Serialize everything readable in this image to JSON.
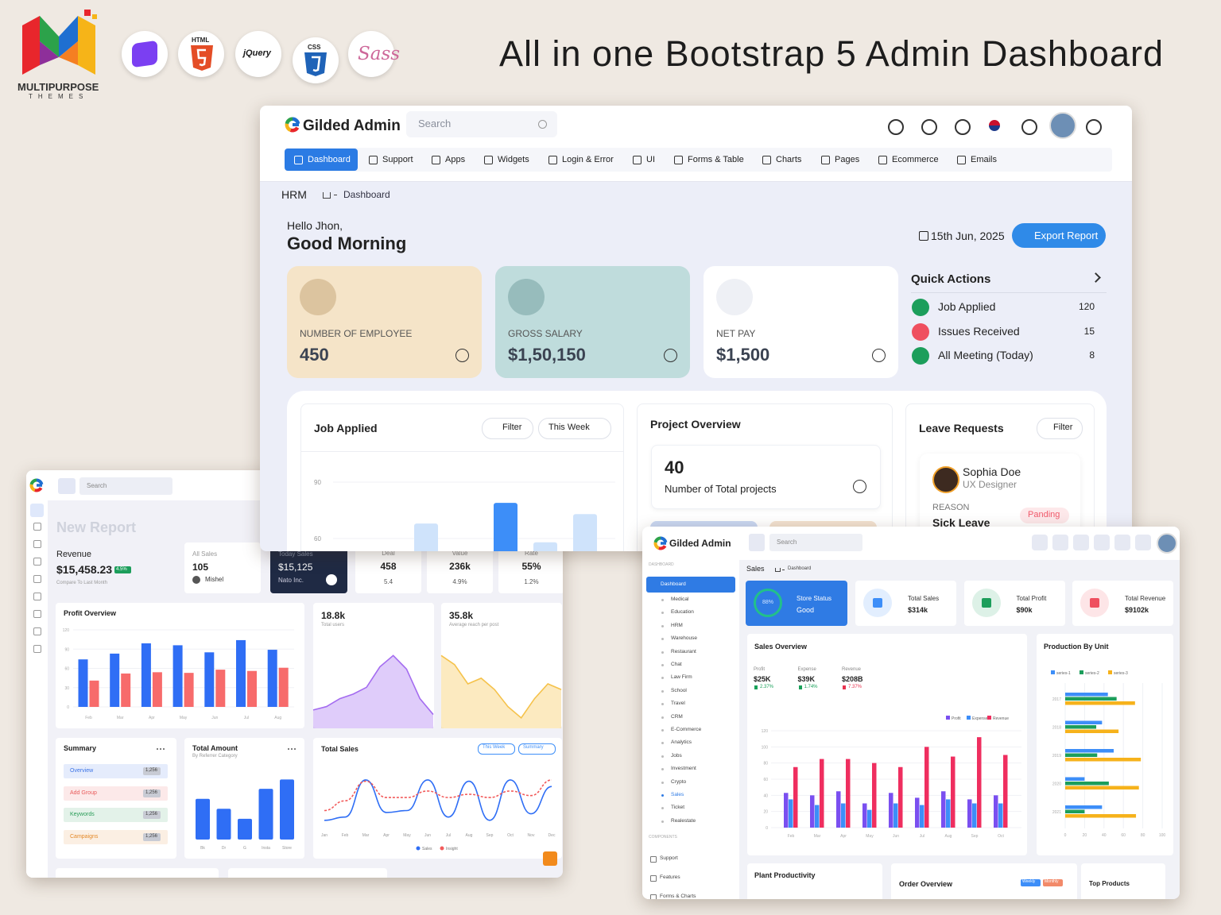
{
  "header": {
    "logo_text": "MULTIPURPOSE",
    "logo_sub": "THEMES",
    "badges": [
      "HTML",
      "jQuery",
      "CSS",
      "Sass"
    ],
    "title": "All in one Bootstrap 5 Admin Dashboard"
  },
  "main": {
    "brand": "Gilded Admin",
    "search": "Search",
    "nav": [
      "Dashboard",
      "Support",
      "Apps",
      "Widgets",
      "Login & Error",
      "UI",
      "Forms & Table",
      "Charts",
      "Pages",
      "Ecommerce",
      "Emails"
    ],
    "breadcrumb": [
      "HRM",
      "Dashboard"
    ],
    "greeting": "Hello Jhon,",
    "salutation": "Good Morning",
    "date": "15th Jun, 2025",
    "export": "Export Report",
    "stats": [
      {
        "label": "NUMBER OF EMPLOYEE",
        "value": "450"
      },
      {
        "label": "GROSS SALARY",
        "value": "$1,50,150"
      },
      {
        "label": "NET PAY",
        "value": "$1,500"
      }
    ],
    "quick_actions": {
      "title": "Quick Actions",
      "items": [
        {
          "label": "Job Applied",
          "count": 120
        },
        {
          "label": "Issues Received",
          "count": 15
        },
        {
          "label": "All Meeting (Today)",
          "count": 8
        }
      ]
    },
    "job_applied": {
      "title": "Job Applied",
      "filter": "Filter",
      "period": "This Week",
      "type": "bar",
      "ylim": [
        0,
        100
      ],
      "yticks": [
        60,
        90
      ],
      "values": [
        null,
        null,
        68,
        null,
        79,
        58,
        73
      ],
      "colors": [
        null,
        null,
        "#cfe3fb",
        null,
        "#3d8ef8",
        "#cfe3fb",
        "#cfe3fb"
      ]
    },
    "project_overview": {
      "title": "Project Overview",
      "count": 40,
      "caption": "Number of Total projects"
    },
    "leave_requests": {
      "title": "Leave Requests",
      "filter": "Filter",
      "name": "Sophia Doe",
      "role": "UX Designer",
      "reason_label": "REASON",
      "reason": "Sick Leave",
      "status": "Panding"
    }
  },
  "left": {
    "search": "Search",
    "heading": "New Report",
    "revenue": {
      "label": "Revenue",
      "value": "$15,458.23",
      "change": "4.5%",
      "note": "Compare To Last Month"
    },
    "all_sales": {
      "label": "All Sales",
      "value": 105,
      "person": "Mishel"
    },
    "today_sales": {
      "label": "Today Sales",
      "value": "$15,125",
      "company": "Nato Inc."
    },
    "kpis": [
      {
        "label": "Deal",
        "value": 458,
        "change": "5.4"
      },
      {
        "label": "Value",
        "value": "236k",
        "change": "4.9%"
      },
      {
        "label": "Rate",
        "value": "55%",
        "change": "1.2%"
      }
    ],
    "profit_overview": {
      "title": "Profit Overview",
      "type": "bar",
      "categories": [
        "Feb",
        "Mar",
        "Apr",
        "May",
        "Jun",
        "Jul",
        "Aug"
      ],
      "ylim": [
        0,
        120
      ],
      "yticks": [
        0,
        30,
        60,
        90,
        120
      ],
      "series": [
        {
          "color": "#2f6ef5",
          "values": [
            74,
            83,
            99,
            96,
            85,
            104,
            89
          ]
        },
        {
          "color": "#f76b6b",
          "values": [
            41,
            52,
            54,
            53,
            58,
            56,
            61
          ]
        }
      ]
    },
    "users": {
      "value": "18.8k",
      "label": "Total users",
      "color": "#a46cf0",
      "ylim": [
        0,
        70
      ],
      "values": [
        12,
        15,
        22,
        26,
        32,
        50,
        60,
        48,
        22,
        8
      ]
    },
    "reach": {
      "value": "35.8k",
      "label": "Average reach per post",
      "color": "#f5c24b",
      "ylim": [
        0,
        70
      ],
      "values": [
        60,
        52,
        35,
        40,
        30,
        15,
        5,
        22,
        35,
        30
      ]
    },
    "summary": {
      "title": "Summary",
      "items": [
        {
          "label": "Overview",
          "value": "1,256",
          "color": "#3b73e6"
        },
        {
          "label": "Add Group",
          "value": "1,256",
          "color": "#e85a5a"
        },
        {
          "label": "Keywords",
          "value": "1,256",
          "color": "#2a9d58"
        },
        {
          "label": "Campaigns",
          "value": "1,256",
          "color": "#e48a2a"
        }
      ]
    },
    "total_amount": {
      "title": "Total Amount",
      "subtitle": "By Referrer Category",
      "type": "bar",
      "categories": [
        "Bk",
        "Dr",
        "G",
        "Insta",
        "Store"
      ],
      "ylim": [
        0,
        100
      ],
      "values": [
        57,
        43,
        29,
        71,
        84
      ],
      "color": "#2f6ef5"
    },
    "total_sales": {
      "title": "Total Sales",
      "period": "This Week",
      "view": "Summary",
      "type": "line",
      "categories": [
        "Jan",
        "Feb",
        "Mar",
        "Apr",
        "May",
        "Jun",
        "Jul",
        "Aug",
        "Sep",
        "Oct",
        "Nov",
        "Dec"
      ],
      "ylim": [
        0,
        100
      ],
      "series": [
        {
          "name": "Sales",
          "color": "#2f6ef5",
          "values": [
            10,
            15,
            72,
            22,
            25,
            72,
            15,
            70,
            10,
            72,
            20,
            62
          ]
        },
        {
          "name": "Insight",
          "color": "#f25b5b",
          "values": [
            25,
            40,
            70,
            45,
            45,
            55,
            45,
            50,
            45,
            55,
            48,
            72
          ]
        }
      ]
    }
  },
  "right": {
    "brand": "Gilded Admin",
    "search": "Search",
    "menu_title": "DASHBOARD",
    "menu": [
      "Dashboard",
      "Medical",
      "Education",
      "HRM",
      "Warehouse",
      "Restaurant",
      "Chat",
      "Law Firm",
      "School",
      "Travel",
      "CRM",
      "E-Commerce",
      "Analytics",
      "Jobs",
      "Investment",
      "Crypto",
      "Sales",
      "Ticket",
      "Realestate"
    ],
    "components_title": "COMPONENTS",
    "components": [
      "Support",
      "Features",
      "Forms & Charts"
    ],
    "breadcrumb": [
      "Sales",
      "Dashboard"
    ],
    "store": {
      "label": "Store Status",
      "status": "Good",
      "percent": "88%"
    },
    "kpis": [
      {
        "label": "Total Sales",
        "value": "$314k",
        "color": "#3d8ef8"
      },
      {
        "label": "Total Profit",
        "value": "$90k",
        "color": "#1c9e5b"
      },
      {
        "label": "Total Revenue",
        "value": "$9102k",
        "color": "#ef4f5f"
      }
    ],
    "sales_overview": {
      "title": "Sales Overview",
      "stats": [
        {
          "label": "Profit",
          "value": "$25K",
          "change": "2.37%",
          "color": "#1aa15a"
        },
        {
          "label": "Expense",
          "value": "$39K",
          "change": "1.74%",
          "color": "#1aa15a"
        },
        {
          "label": "Revenue",
          "value": "$208B",
          "change": "7.37%",
          "color": "#e8334f"
        }
      ],
      "type": "bar",
      "categories": [
        "Feb",
        "Mar",
        "Apr",
        "May",
        "Jun",
        "Jul",
        "Aug",
        "Sep",
        "Oct"
      ],
      "ylim": [
        0,
        120
      ],
      "yticks": [
        0,
        20,
        40,
        60,
        80,
        100,
        120
      ],
      "series": [
        {
          "name": "Profit",
          "color": "#7a4ff0",
          "values": [
            43,
            40,
            45,
            30,
            43,
            37,
            45,
            35,
            40
          ]
        },
        {
          "name": "Expense",
          "color": "#3d8ef8",
          "values": [
            35,
            28,
            30,
            22,
            30,
            28,
            35,
            30,
            30
          ]
        },
        {
          "name": "Revenue",
          "color": "#ef2e5f",
          "values": [
            75,
            85,
            85,
            80,
            75,
            100,
            88,
            112,
            90
          ]
        }
      ]
    },
    "production": {
      "title": "Production By Unit",
      "type": "hbar",
      "categories": [
        "2017",
        "2018",
        "2019",
        "2020",
        "2021"
      ],
      "xlim": [
        0,
        100
      ],
      "xticks": [
        0,
        20,
        40,
        60,
        80,
        100
      ],
      "series": [
        {
          "name": "series-1",
          "color": "#3d8ef8",
          "values": [
            44,
            38,
            50,
            20,
            38
          ]
        },
        {
          "name": "series-2",
          "color": "#1c9e5b",
          "values": [
            53,
            32,
            33,
            45,
            20
          ]
        },
        {
          "name": "series-3",
          "color": "#f6b21b",
          "values": [
            72,
            55,
            78,
            76,
            73
          ]
        }
      ]
    },
    "plant": "Plant Productivity",
    "order": {
      "title": "Order Overview",
      "tabs": [
        "Weekly",
        "Monthly"
      ]
    },
    "top_products": "Top Products"
  }
}
